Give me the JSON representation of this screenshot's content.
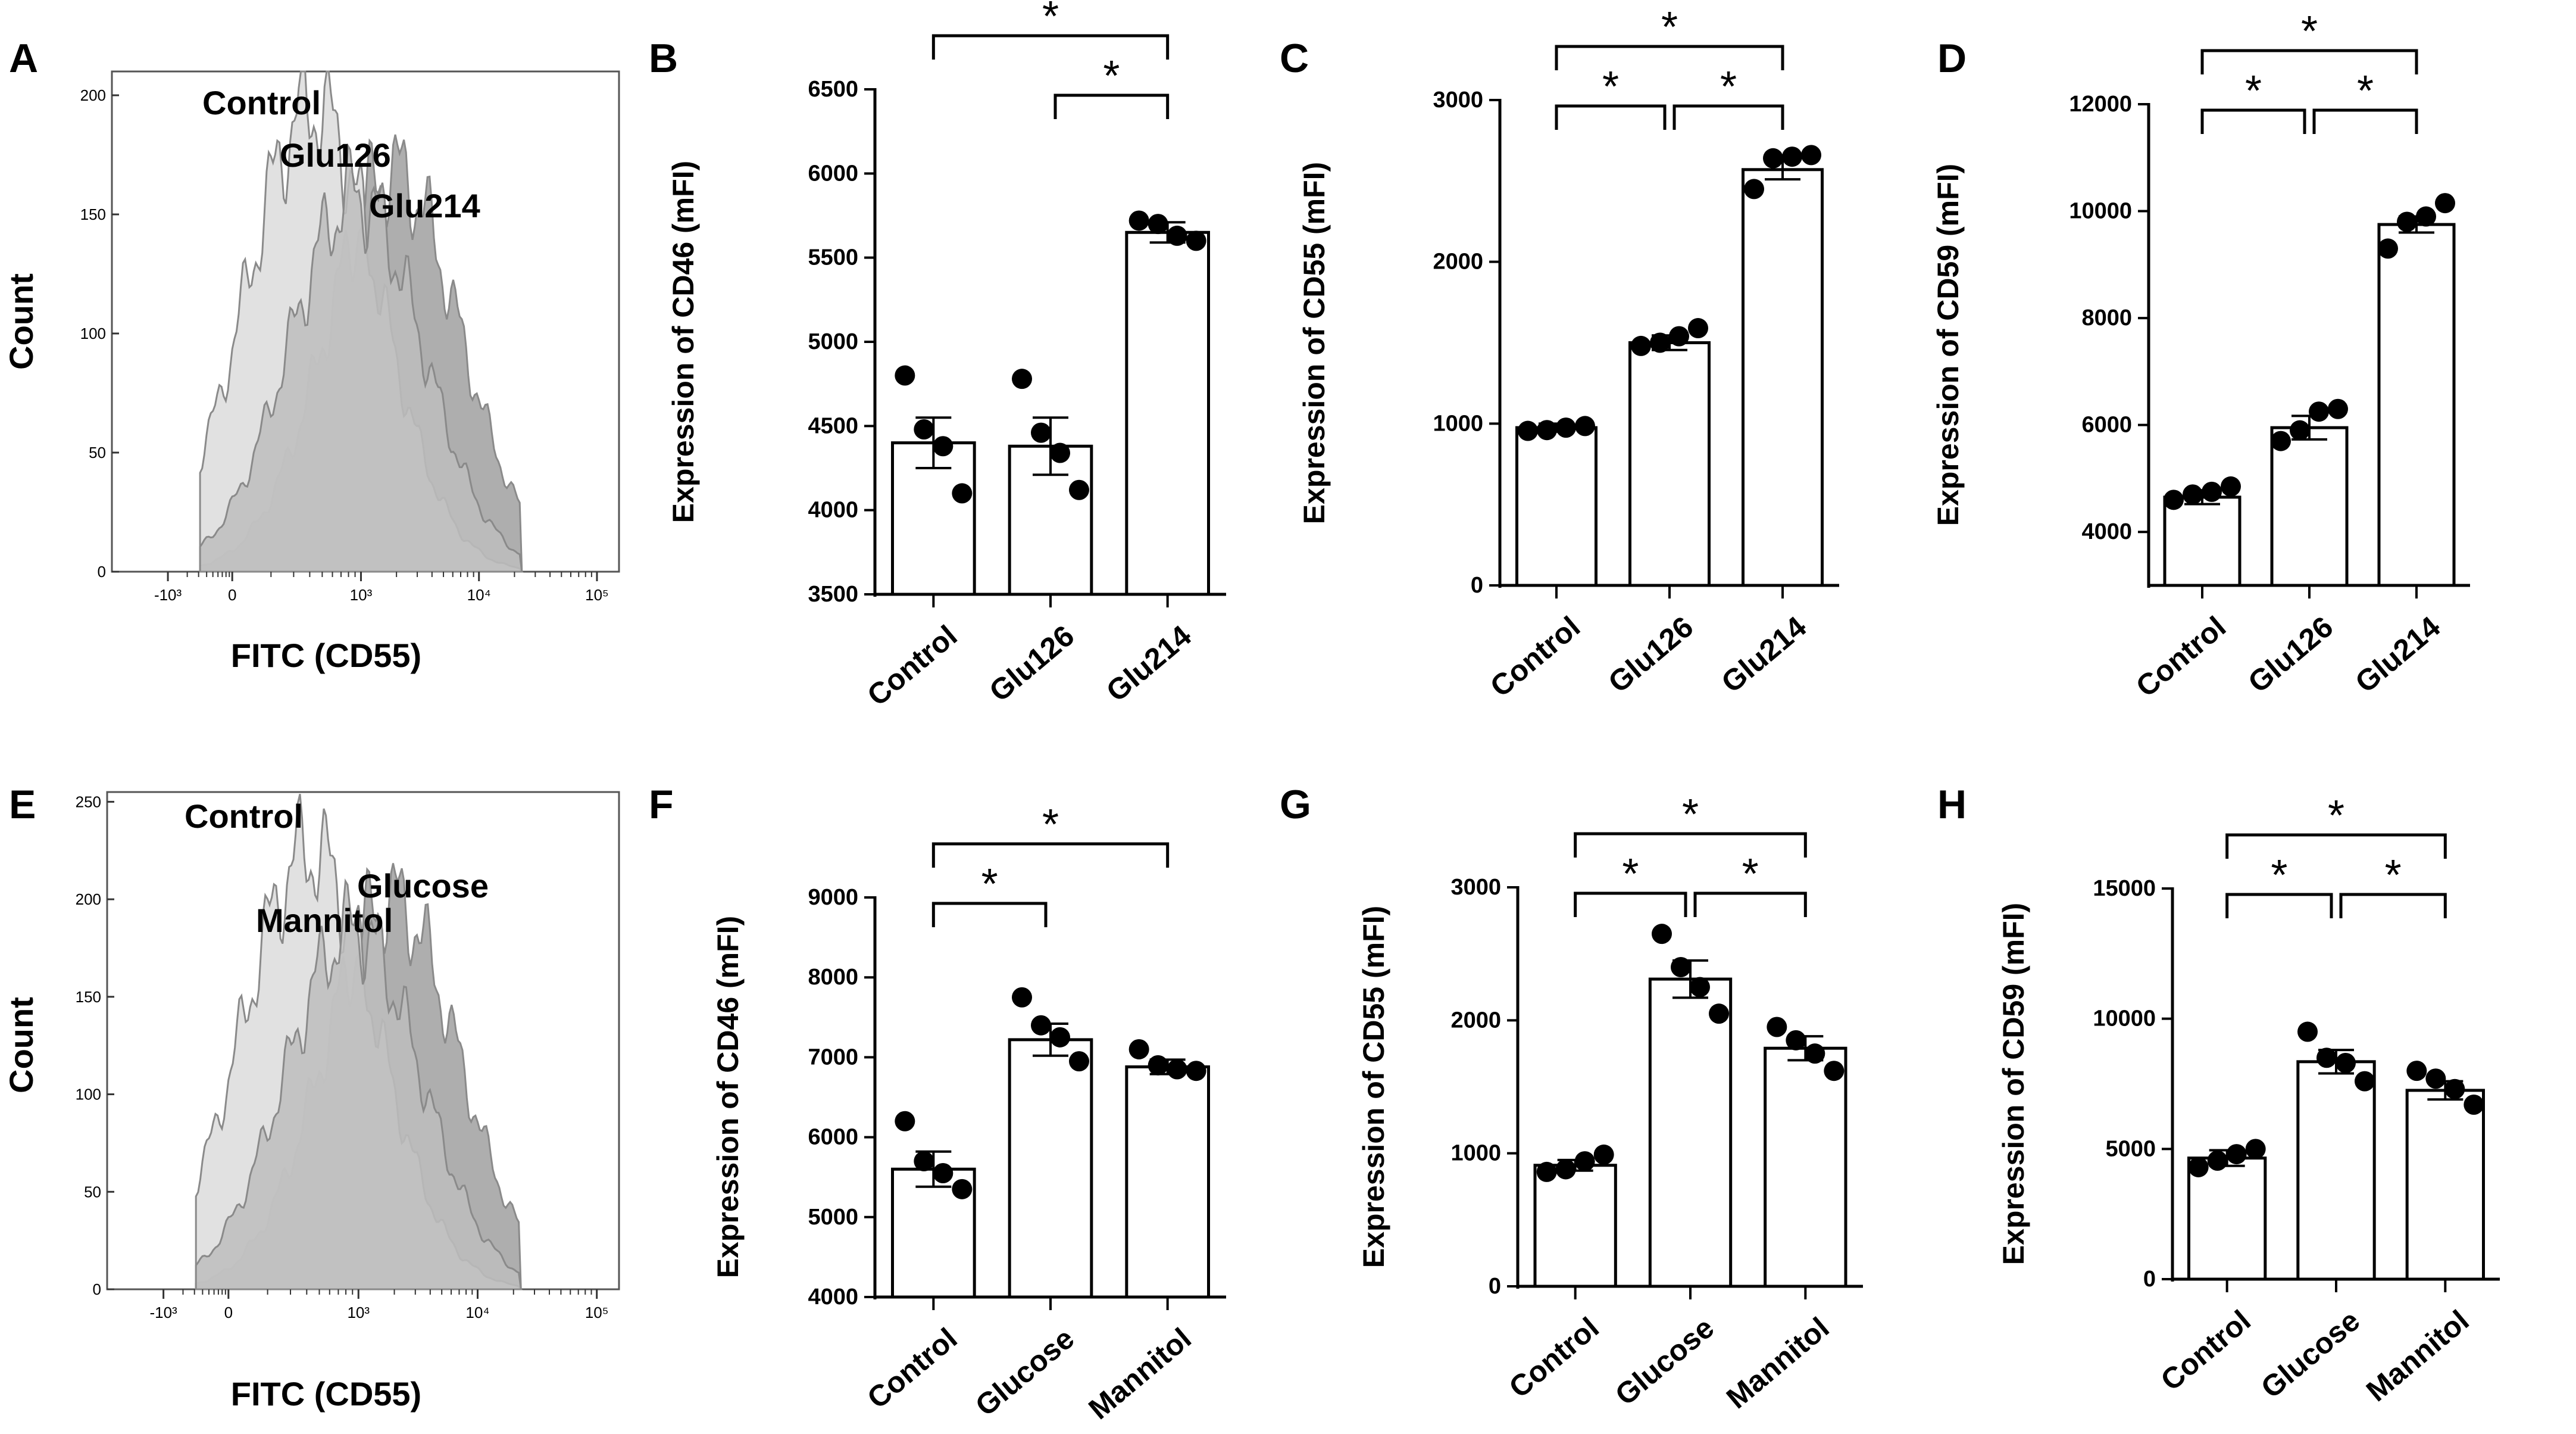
{
  "colors": {
    "bar_fill": "#ffffff",
    "stroke": "#000000",
    "hist_light": "#dcdcdc",
    "hist_mid": "#bdbdbd",
    "hist_dark": "#a0a0a0",
    "hist_edge": "#8a8a8a"
  },
  "chart_data": [
    {
      "id": "A",
      "type": "area",
      "letter": "A",
      "title": "",
      "xlabel": "FITC (CD55)",
      "ylabel": "Count",
      "yticks": [
        0,
        50,
        100,
        150,
        200
      ],
      "ylim": [
        0,
        210
      ],
      "xticks": [
        "-10³",
        "0",
        "10³",
        "10⁴",
        "10⁵"
      ],
      "series": [
        {
          "name": "Control",
          "peak_decade": 0.45,
          "peak": 196
        },
        {
          "name": "Glu126",
          "peak_decade": 0.85,
          "peak": 158
        },
        {
          "name": "Glu214",
          "peak_decade": 1.2,
          "peak": 168
        }
      ]
    },
    {
      "id": "E",
      "type": "area",
      "letter": "E",
      "title": "",
      "xlabel": "FITC (CD55)",
      "ylabel": "Count",
      "yticks": [
        0,
        50,
        100,
        150,
        200,
        250
      ],
      "ylim": [
        0,
        255
      ],
      "xticks": [
        "-10³",
        "0",
        "10³",
        "10⁴",
        "10⁵"
      ],
      "series": [
        {
          "name": "Control",
          "peak_decade": 0.45,
          "peak": 225
        },
        {
          "name": "Mannitol",
          "peak_decade": 0.85,
          "peak": 185
        },
        {
          "name": "Glucose",
          "peak_decade": 1.2,
          "peak": 200
        }
      ]
    },
    {
      "id": "B",
      "type": "bar",
      "letter": "B",
      "ylabel": "Expression of CD46 (mFI)",
      "ylim": [
        3500,
        6500
      ],
      "yticks": [
        3500,
        4000,
        4500,
        5000,
        5500,
        6000,
        6500
      ],
      "categories": [
        "Control",
        "Glu126",
        "Glu214"
      ],
      "values": [
        4400,
        4380,
        5650
      ],
      "sem": [
        150,
        170,
        60
      ],
      "points": [
        [
          4800,
          4480,
          4380,
          4100
        ],
        [
          4780,
          4460,
          4340,
          4120
        ],
        [
          5720,
          5700,
          5630,
          5600
        ]
      ],
      "significance": [
        {
          "from": 0,
          "to": 2,
          "label": "*"
        },
        {
          "from": 1,
          "to": 2,
          "label": "*"
        }
      ]
    },
    {
      "id": "C",
      "type": "bar",
      "letter": "C",
      "ylabel": "Expression of CD55 (mFI)",
      "ylim": [
        0,
        3000
      ],
      "yticks": [
        0,
        1000,
        2000,
        3000
      ],
      "categories": [
        "Control",
        "Glu126",
        "Glu214"
      ],
      "values": [
        975,
        1500,
        2570
      ],
      "sem": [
        25,
        45,
        60
      ],
      "points": [
        [
          955,
          960,
          975,
          985
        ],
        [
          1480,
          1500,
          1540,
          1590
        ],
        [
          2450,
          2640,
          2650,
          2660
        ]
      ],
      "significance": [
        {
          "from": 0,
          "to": 2,
          "label": "*"
        },
        {
          "from": 0,
          "to": 1,
          "label": "*"
        },
        {
          "from": 1,
          "to": 2,
          "label": "*"
        }
      ]
    },
    {
      "id": "D",
      "type": "bar",
      "letter": "D",
      "ylabel": "Expression of CD59 (mFI)",
      "ylim": [
        3000,
        12000
      ],
      "yticks": [
        4000,
        6000,
        8000,
        10000,
        12000
      ],
      "categories": [
        "Control",
        "Glu126",
        "Glu214"
      ],
      "values": [
        4650,
        5950,
        9750
      ],
      "sem": [
        130,
        220,
        150
      ],
      "points": [
        [
          4600,
          4700,
          4750,
          4850
        ],
        [
          5700,
          5900,
          6250,
          6300
        ],
        [
          9300,
          9800,
          9900,
          10150
        ]
      ],
      "significance": [
        {
          "from": 0,
          "to": 2,
          "label": "*"
        },
        {
          "from": 0,
          "to": 1,
          "label": "*"
        },
        {
          "from": 1,
          "to": 2,
          "label": "*"
        }
      ]
    },
    {
      "id": "F",
      "type": "bar",
      "letter": "F",
      "ylabel": "Expression of CD46 (mFI)",
      "ylim": [
        4000,
        9000
      ],
      "yticks": [
        4000,
        5000,
        6000,
        7000,
        8000,
        9000
      ],
      "categories": [
        "Control",
        "Glucose",
        "Mannitol"
      ],
      "values": [
        5600,
        7220,
        6880
      ],
      "sem": [
        220,
        200,
        90
      ],
      "points": [
        [
          6200,
          5700,
          5550,
          5350
        ],
        [
          7750,
          7400,
          7250,
          6950
        ],
        [
          7100,
          6900,
          6850,
          6830
        ]
      ],
      "significance": [
        {
          "from": 0,
          "to": 2,
          "label": "*"
        },
        {
          "from": 0,
          "to": 1,
          "label": "*"
        }
      ]
    },
    {
      "id": "G",
      "type": "bar",
      "letter": "G",
      "ylabel": "Expression of CD55 (mFI)",
      "ylim": [
        0,
        3000
      ],
      "yticks": [
        0,
        1000,
        2000,
        3000
      ],
      "categories": [
        "Control",
        "Glucose",
        "Mannitol"
      ],
      "values": [
        910,
        2310,
        1790
      ],
      "sem": [
        40,
        140,
        90
      ],
      "points": [
        [
          860,
          880,
          940,
          990
        ],
        [
          2650,
          2400,
          2250,
          2050
        ],
        [
          1950,
          1850,
          1750,
          1620
        ]
      ],
      "significance": [
        {
          "from": 0,
          "to": 2,
          "label": "*"
        },
        {
          "from": 0,
          "to": 1,
          "label": "*"
        },
        {
          "from": 1,
          "to": 2,
          "label": "*"
        }
      ]
    },
    {
      "id": "H",
      "type": "bar",
      "letter": "H",
      "ylabel": "Expression of CD59 (mFI)",
      "ylim": [
        0,
        15000
      ],
      "yticks": [
        0,
        5000,
        10000,
        15000
      ],
      "categories": [
        "Control",
        "Glucose",
        "Mannitol"
      ],
      "values": [
        4650,
        8350,
        7250
      ],
      "sem": [
        300,
        450,
        350
      ],
      "points": [
        [
          4300,
          4550,
          4800,
          5000
        ],
        [
          9500,
          8500,
          8300,
          7600
        ],
        [
          8000,
          7700,
          7300,
          6700
        ]
      ],
      "significance": [
        {
          "from": 0,
          "to": 2,
          "label": "*"
        },
        {
          "from": 0,
          "to": 1,
          "label": "*"
        },
        {
          "from": 1,
          "to": 2,
          "label": "*"
        }
      ]
    }
  ]
}
